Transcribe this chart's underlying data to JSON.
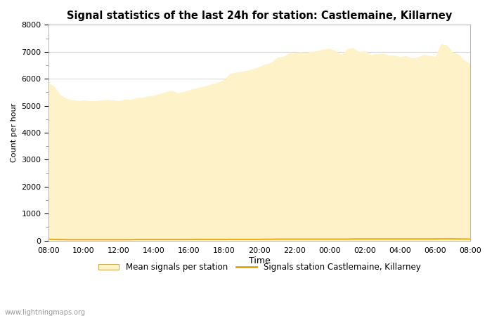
{
  "title": "Signal statistics of the last 24h for station: Castlemaine, Killarney",
  "xlabel": "Time",
  "ylabel": "Count per hour",
  "fill_color": "#FEF3C8",
  "line_color": "#E8A000",
  "background_color": "#FFFFFF",
  "grid_color": "#CCCCCC",
  "ylim": [
    0,
    8000
  ],
  "yticks": [
    0,
    1000,
    2000,
    3000,
    4000,
    5000,
    6000,
    7000,
    8000
  ],
  "xtick_labels": [
    "08:00",
    "10:00",
    "12:00",
    "14:00",
    "16:00",
    "18:00",
    "20:00",
    "22:00",
    "00:00",
    "02:00",
    "04:00",
    "06:00",
    "08:00"
  ],
  "legend_fill_label": "Mean signals per station",
  "legend_line_label": "Signals station Castlemaine, Killarney",
  "watermark": "www.lightningmaps.org",
  "mean_values": [
    5850,
    5720,
    5400,
    5280,
    5220,
    5190,
    5210,
    5190,
    5180,
    5210,
    5230,
    5210,
    5190,
    5250,
    5230,
    5300,
    5310,
    5360,
    5390,
    5450,
    5520,
    5570,
    5480,
    5520,
    5590,
    5650,
    5700,
    5750,
    5820,
    5870,
    5980,
    6200,
    6250,
    6270,
    6320,
    6380,
    6450,
    6550,
    6600,
    6800,
    6820,
    6950,
    6980,
    7000,
    6980,
    7020,
    7050,
    7100,
    7120,
    7050,
    6900,
    7120,
    7150,
    7000,
    7050,
    6900,
    6920,
    6950,
    6870,
    6880,
    6820,
    6850,
    6780,
    6800,
    6900,
    6870,
    6820,
    7300,
    7250,
    7000,
    6900,
    6700,
    6550
  ],
  "station_values": [
    50,
    40,
    35,
    30,
    30,
    30,
    30,
    30,
    30,
    30,
    30,
    30,
    30,
    30,
    30,
    35,
    35,
    35,
    35,
    35,
    35,
    35,
    35,
    35,
    35,
    40,
    40,
    40,
    40,
    40,
    40,
    45,
    45,
    45,
    45,
    45,
    45,
    50,
    50,
    55,
    55,
    55,
    55,
    55,
    55,
    55,
    55,
    55,
    55,
    55,
    55,
    55,
    60,
    60,
    60,
    60,
    60,
    60,
    60,
    60,
    60,
    60,
    60,
    60,
    60,
    60,
    60,
    65,
    65,
    65,
    60,
    60,
    55
  ]
}
